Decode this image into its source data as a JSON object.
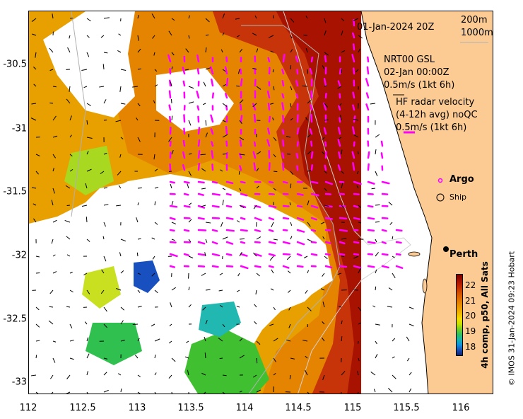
{
  "timestamp_top": "01-Jan-2024 20Z",
  "bathymetry_legend": [
    "200m",
    "1000m"
  ],
  "model_label": [
    "NRT00 GSL",
    "02-Jan 00:00Z",
    "0.5m/s (1kt 6h)"
  ],
  "radar_label": [
    "HF radar velocity",
    "(4-12h avg) noQC",
    "0.5m/s (1kt 6h)"
  ],
  "legend": {
    "argo": "Argo",
    "ship": "Ship"
  },
  "place_label": "Perth",
  "colorbar": {
    "title": "4h comp, p50, All Sats",
    "ticks": [
      "22",
      "21",
      "20",
      "19",
      "18"
    ]
  },
  "copyright": "© IMOS 31-Jan-2024 09:23 Hobart",
  "x_axis": {
    "ticks": [
      "112",
      "112.5",
      "113",
      "113.5",
      "114",
      "114.5",
      "115",
      "115.5",
      "116"
    ],
    "range": [
      112,
      116.3
    ]
  },
  "y_axis": {
    "ticks": [
      "-30.5",
      "-31",
      "-31.5",
      "-32",
      "-32.5",
      "-33"
    ],
    "range": [
      -33.1,
      -30.1
    ]
  },
  "colors": {
    "land": "#fccb94",
    "current_arrow": "#ff00ff",
    "ocean_missing": "#ffffff"
  }
}
